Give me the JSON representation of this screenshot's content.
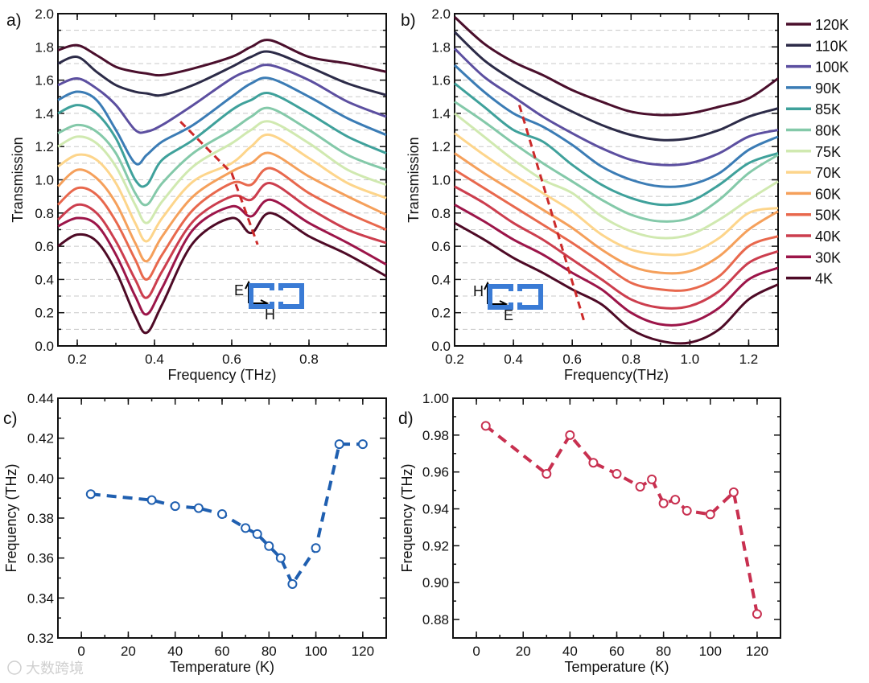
{
  "colors": {
    "120K": "#4a0f2c",
    "110K": "#2c2b48",
    "100K": "#5c4fa0",
    "90K": "#3b7cb5",
    "85K": "#3fa19b",
    "80K": "#84c9a9",
    "75K": "#d0e9b0",
    "70K": "#fdd58b",
    "60K": "#f5a05b",
    "50K": "#e8684d",
    "40K": "#cc3e4e",
    "30K": "#9c1549",
    "4K": "#4e0a26",
    "marker_line": "#cc2a2a",
    "inset_blue": "#3a7bd5",
    "panel_c": "#1f5fb0",
    "panel_d": "#c83050"
  },
  "legend": [
    "120K",
    "110K",
    "100K",
    "90K",
    "85K",
    "80K",
    "75K",
    "70K",
    "60K",
    "50K",
    "40K",
    "30K",
    "4K"
  ],
  "watermark": "大数跨境",
  "chart_data": [
    {
      "panel": "a)",
      "type": "line",
      "xlabel": "Frequency (THz)",
      "ylabel": "Transmission",
      "xlim": [
        0.15,
        1.0
      ],
      "ylim": [
        0,
        2.0
      ],
      "xticks": [
        0.2,
        0.4,
        0.6,
        0.8
      ],
      "yticks": [
        0.0,
        0.2,
        0.4,
        0.6,
        0.8,
        1.0,
        1.2,
        1.4,
        1.6,
        1.8,
        2.0
      ],
      "grid": "dashed horizontal every 0.1",
      "inset": {
        "e_label": "E",
        "h_label": "H",
        "orientation": "E vertical, H horizontal"
      },
      "guide_line": {
        "x": [
          0.467,
          0.6,
          0.667
        ],
        "y": [
          1.35,
          1.04,
          0.61
        ]
      },
      "x": [
        0.15,
        0.2,
        0.25,
        0.3,
        0.35,
        0.38,
        0.42,
        0.5,
        0.6,
        0.65,
        0.7,
        0.8,
        0.9,
        1.0
      ],
      "series": [
        {
          "name": "120K",
          "values": [
            1.78,
            1.81,
            1.75,
            1.68,
            1.65,
            1.64,
            1.63,
            1.67,
            1.74,
            1.8,
            1.84,
            1.74,
            1.7,
            1.65
          ]
        },
        {
          "name": "110K",
          "values": [
            1.7,
            1.74,
            1.65,
            1.57,
            1.53,
            1.52,
            1.51,
            1.57,
            1.68,
            1.74,
            1.77,
            1.68,
            1.58,
            1.51
          ]
        },
        {
          "name": "100K",
          "values": [
            1.57,
            1.61,
            1.55,
            1.45,
            1.3,
            1.29,
            1.33,
            1.45,
            1.61,
            1.66,
            1.69,
            1.6,
            1.47,
            1.38
          ]
        },
        {
          "name": "90K",
          "values": [
            1.48,
            1.53,
            1.48,
            1.3,
            1.1,
            1.15,
            1.23,
            1.33,
            1.5,
            1.58,
            1.61,
            1.5,
            1.37,
            1.27
          ]
        },
        {
          "name": "85K",
          "values": [
            1.4,
            1.45,
            1.4,
            1.25,
            1.0,
            0.97,
            1.12,
            1.24,
            1.42,
            1.48,
            1.52,
            1.4,
            1.26,
            1.16
          ]
        },
        {
          "name": "80K",
          "values": [
            1.28,
            1.33,
            1.29,
            1.16,
            0.92,
            0.85,
            0.98,
            1.16,
            1.3,
            1.38,
            1.43,
            1.3,
            1.15,
            1.06
          ]
        },
        {
          "name": "75K",
          "values": [
            1.2,
            1.26,
            1.22,
            1.08,
            0.85,
            0.74,
            0.87,
            1.08,
            1.22,
            1.3,
            1.35,
            1.22,
            1.06,
            0.97
          ]
        },
        {
          "name": "70K",
          "values": [
            1.08,
            1.15,
            1.12,
            0.98,
            0.74,
            0.63,
            0.77,
            0.99,
            1.1,
            1.2,
            1.27,
            1.13,
            0.98,
            0.89
          ]
        },
        {
          "name": "60K",
          "values": [
            0.96,
            1.06,
            1.01,
            0.86,
            0.62,
            0.51,
            0.66,
            0.9,
            1.05,
            1.1,
            1.16,
            1.02,
            0.9,
            0.79
          ]
        },
        {
          "name": "50K",
          "values": [
            0.85,
            0.95,
            0.91,
            0.75,
            0.52,
            0.4,
            0.55,
            0.82,
            0.98,
            0.97,
            1.07,
            0.92,
            0.8,
            0.7
          ]
        },
        {
          "name": "40K",
          "values": [
            0.76,
            0.85,
            0.8,
            0.63,
            0.4,
            0.29,
            0.45,
            0.75,
            0.9,
            0.88,
            0.98,
            0.83,
            0.7,
            0.62
          ]
        },
        {
          "name": "30K",
          "values": [
            0.72,
            0.77,
            0.73,
            0.55,
            0.3,
            0.19,
            0.35,
            0.7,
            0.84,
            0.78,
            0.88,
            0.74,
            0.62,
            0.49
          ]
        },
        {
          "name": "4K",
          "values": [
            0.6,
            0.67,
            0.63,
            0.45,
            0.18,
            0.08,
            0.25,
            0.62,
            0.77,
            0.68,
            0.8,
            0.66,
            0.55,
            0.42
          ]
        }
      ]
    },
    {
      "panel": "b)",
      "type": "line",
      "xlabel": "Frequency(THz)",
      "ylabel": "Transmission",
      "xlim": [
        0.2,
        1.3
      ],
      "ylim": [
        0,
        2.0
      ],
      "xticks": [
        0.2,
        0.4,
        0.6,
        0.8,
        1.0,
        1.2
      ],
      "yticks": [
        0.0,
        0.2,
        0.4,
        0.6,
        0.8,
        1.0,
        1.2,
        1.4,
        1.6,
        1.8,
        2.0
      ],
      "grid": "dashed horizontal every 0.1",
      "legend_position": "right",
      "inset": {
        "e_label": "E",
        "h_label": "H",
        "orientation": "H vertical, E horizontal"
      },
      "guide_line": {
        "x": [
          0.42,
          0.64
        ],
        "y": [
          1.45,
          0.15
        ]
      },
      "x": [
        0.2,
        0.3,
        0.4,
        0.5,
        0.6,
        0.7,
        0.8,
        0.9,
        1.0,
        1.1,
        1.2,
        1.3
      ],
      "series": [
        {
          "name": "120K",
          "values": [
            1.98,
            1.82,
            1.71,
            1.63,
            1.54,
            1.47,
            1.41,
            1.39,
            1.4,
            1.44,
            1.49,
            1.61
          ]
        },
        {
          "name": "110K",
          "values": [
            1.89,
            1.72,
            1.6,
            1.5,
            1.41,
            1.33,
            1.27,
            1.24,
            1.25,
            1.3,
            1.38,
            1.43
          ]
        },
        {
          "name": "100K",
          "values": [
            1.79,
            1.62,
            1.5,
            1.38,
            1.28,
            1.19,
            1.12,
            1.09,
            1.1,
            1.16,
            1.26,
            1.3
          ]
        },
        {
          "name": "90K",
          "values": [
            1.69,
            1.53,
            1.4,
            1.32,
            1.21,
            1.08,
            1.0,
            0.96,
            0.97,
            1.04,
            1.18,
            1.26
          ]
        },
        {
          "name": "85K",
          "values": [
            1.58,
            1.44,
            1.3,
            1.23,
            1.09,
            0.97,
            0.89,
            0.85,
            0.87,
            0.97,
            1.1,
            1.16
          ]
        },
        {
          "name": "80K",
          "values": [
            1.47,
            1.35,
            1.22,
            1.1,
            0.99,
            0.88,
            0.79,
            0.75,
            0.77,
            0.88,
            1.04,
            1.15
          ]
        },
        {
          "name": "75K",
          "values": [
            1.4,
            1.26,
            1.12,
            1.0,
            0.92,
            0.78,
            0.69,
            0.65,
            0.67,
            0.76,
            0.88,
            0.99
          ]
        },
        {
          "name": "70K",
          "values": [
            1.28,
            1.15,
            1.03,
            0.92,
            0.81,
            0.67,
            0.58,
            0.55,
            0.56,
            0.65,
            0.8,
            0.83
          ]
        },
        {
          "name": "60K",
          "values": [
            1.16,
            1.04,
            0.93,
            0.82,
            0.71,
            0.58,
            0.48,
            0.44,
            0.45,
            0.54,
            0.7,
            0.81
          ]
        },
        {
          "name": "50K",
          "values": [
            1.06,
            0.95,
            0.84,
            0.73,
            0.62,
            0.5,
            0.38,
            0.34,
            0.34,
            0.42,
            0.6,
            0.66
          ]
        },
        {
          "name": "40K",
          "values": [
            0.96,
            0.86,
            0.74,
            0.64,
            0.52,
            0.4,
            0.28,
            0.23,
            0.24,
            0.33,
            0.5,
            0.57
          ]
        },
        {
          "name": "30K",
          "values": [
            0.85,
            0.75,
            0.64,
            0.55,
            0.44,
            0.34,
            0.2,
            0.13,
            0.14,
            0.23,
            0.4,
            0.47
          ]
        },
        {
          "name": "4K",
          "values": [
            0.74,
            0.64,
            0.53,
            0.44,
            0.34,
            0.25,
            0.1,
            0.03,
            0.02,
            0.1,
            0.28,
            0.37
          ]
        }
      ]
    },
    {
      "panel": "c)",
      "type": "scatter",
      "xlabel": "Temperature (K)",
      "ylabel": "Frequency (THz)",
      "xlim": [
        -10,
        130
      ],
      "ylim": [
        0.32,
        0.44
      ],
      "xticks": [
        0,
        20,
        40,
        60,
        80,
        100,
        120
      ],
      "yticks": [
        0.32,
        0.34,
        0.36,
        0.38,
        0.4,
        0.42,
        0.44
      ],
      "ytick_labels": [
        "0.32",
        "0.34",
        "0.36",
        "0.38",
        "0.40",
        "0.42",
        "0.44"
      ],
      "x": [
        4,
        30,
        40,
        50,
        60,
        70,
        75,
        80,
        85,
        90,
        100,
        110,
        120
      ],
      "y": [
        0.392,
        0.389,
        0.386,
        0.385,
        0.382,
        0.375,
        0.372,
        0.366,
        0.36,
        0.347,
        0.365,
        0.417,
        0.417
      ]
    },
    {
      "panel": "d)",
      "type": "scatter",
      "xlabel": "Temperature (K)",
      "ylabel": "Frequency (THz)",
      "xlim": [
        -10,
        130
      ],
      "ylim": [
        0.87,
        1.0
      ],
      "xticks": [
        0,
        20,
        40,
        60,
        80,
        100,
        120
      ],
      "yticks": [
        0.88,
        0.9,
        0.92,
        0.94,
        0.96,
        0.98,
        1.0
      ],
      "ytick_labels": [
        "0.88",
        "0.90",
        "0.92",
        "0.94",
        "0.96",
        "0.98",
        "1.00"
      ],
      "x": [
        4,
        30,
        40,
        50,
        60,
        70,
        75,
        80,
        85,
        90,
        100,
        110,
        120
      ],
      "y": [
        0.985,
        0.959,
        0.98,
        0.965,
        0.959,
        0.952,
        0.956,
        0.943,
        0.945,
        0.939,
        0.937,
        0.949,
        0.883
      ]
    }
  ]
}
